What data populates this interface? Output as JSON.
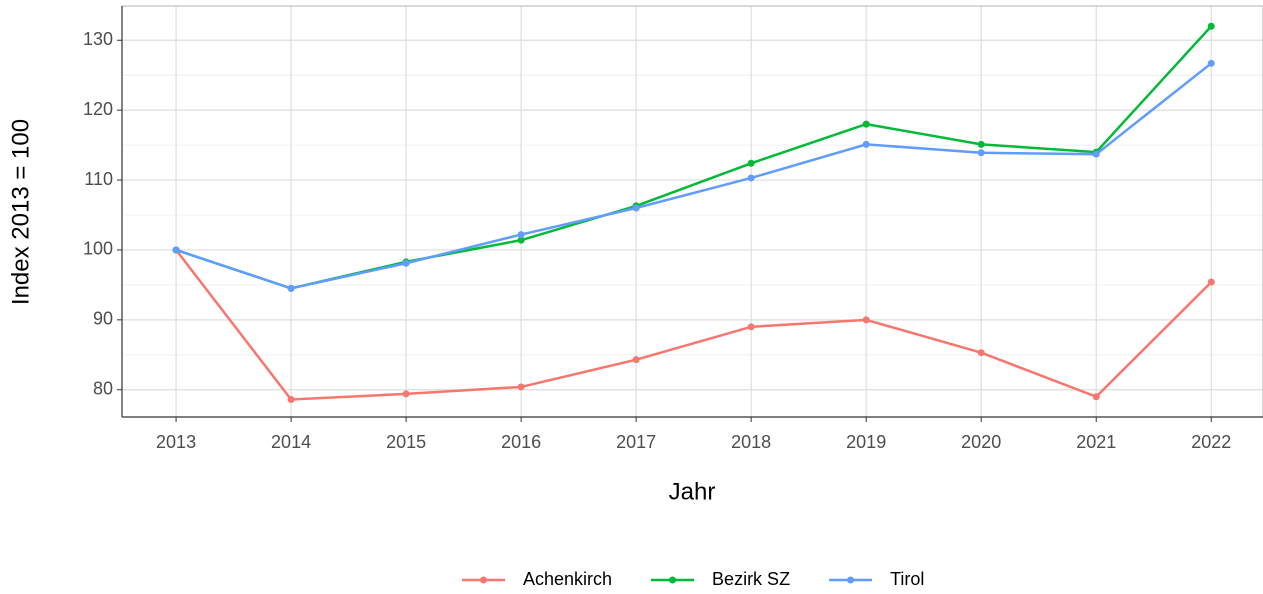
{
  "chart_data": {
    "type": "line",
    "x_label": "Jahr",
    "y_label": "Index  2013  = 100",
    "x": [
      2013,
      2014,
      2015,
      2016,
      2017,
      2018,
      2019,
      2020,
      2021,
      2022
    ],
    "series": [
      {
        "name": "Achenkirch",
        "color": "#f8766d",
        "values": [
          100,
          78.6,
          79.4,
          80.4,
          84.3,
          89.0,
          90.0,
          85.3,
          79.0,
          95.4
        ]
      },
      {
        "name": "Bezirk SZ",
        "color": "#00ba38",
        "values": [
          100,
          94.5,
          98.3,
          101.4,
          106.3,
          112.4,
          118.0,
          115.1,
          114.0,
          132.0
        ]
      },
      {
        "name": "Tirol",
        "color": "#619cff",
        "values": [
          100,
          94.5,
          98.1,
          102.2,
          106.0,
          110.3,
          115.1,
          113.9,
          113.7,
          126.7
        ]
      }
    ],
    "xlim": [
      2012.53,
      2022.45
    ],
    "xticks": [
      2013,
      2014,
      2015,
      2016,
      2017,
      2018,
      2019,
      2020,
      2021,
      2022
    ],
    "ylim": [
      76.1,
      134.9
    ],
    "yticks": [
      80,
      90,
      100,
      110,
      120,
      130
    ],
    "grid": true,
    "legend": "bottom"
  }
}
